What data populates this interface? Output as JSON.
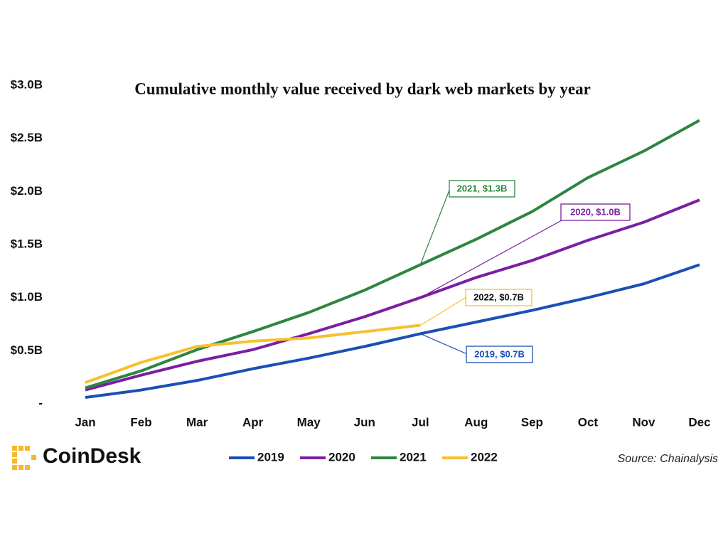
{
  "chart_data": {
    "type": "line",
    "title": "Cumulative monthly value received by dark web markets by year",
    "categories": [
      "Jan",
      "Feb",
      "Mar",
      "Apr",
      "May",
      "Jun",
      "Jul",
      "Aug",
      "Sep",
      "Oct",
      "Nov",
      "Dec"
    ],
    "series": [
      {
        "name": "2019",
        "color": "#1a4fb5",
        "values": [
          0.06,
          0.13,
          0.22,
          0.33,
          0.43,
          0.54,
          0.66,
          0.77,
          0.88,
          1.0,
          1.13,
          1.31
        ]
      },
      {
        "name": "2020",
        "color": "#7a1fa2",
        "values": [
          0.13,
          0.27,
          0.4,
          0.51,
          0.66,
          0.82,
          1.0,
          1.19,
          1.35,
          1.54,
          1.71,
          1.92
        ]
      },
      {
        "name": "2021",
        "color": "#2e8540",
        "values": [
          0.15,
          0.31,
          0.51,
          0.68,
          0.86,
          1.07,
          1.31,
          1.55,
          1.81,
          2.13,
          2.38,
          2.67
        ]
      },
      {
        "name": "2022",
        "color": "#f5c12e",
        "values": [
          0.2,
          0.39,
          0.54,
          0.59,
          0.62,
          0.68,
          0.74,
          null,
          null,
          null,
          null,
          null
        ]
      }
    ],
    "ylim": [
      0,
      3.0
    ],
    "yticks": [
      {
        "value": 0,
        "label": "-"
      },
      {
        "value": 0.5,
        "label": "$0.5B"
      },
      {
        "value": 1.0,
        "label": "$1.0B"
      },
      {
        "value": 1.5,
        "label": "$1.5B"
      },
      {
        "value": 2.0,
        "label": "$2.0B"
      },
      {
        "value": 2.5,
        "label": "$2.5B"
      },
      {
        "value": 3.0,
        "label": "$3.0B"
      }
    ],
    "grid": false,
    "annotations": [
      {
        "text": "2021, $1.3B",
        "color": "#2e8540"
      },
      {
        "text": "2020, $1.0B",
        "color": "#7a1fa2"
      },
      {
        "text": "2022, $0.7B",
        "color": "#f5c12e"
      },
      {
        "text": "2019, $0.7B",
        "color": "#1a4fb5"
      }
    ],
    "source": "Source: Chainalysis",
    "logo": "CoinDesk"
  }
}
